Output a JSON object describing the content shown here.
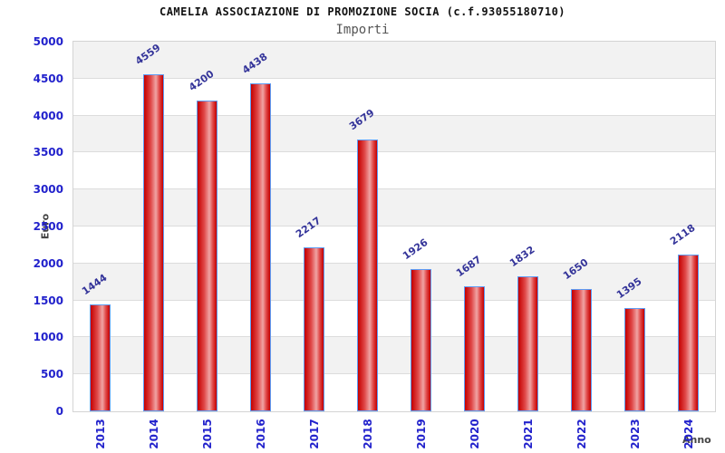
{
  "chart_data": {
    "type": "bar",
    "title": "CAMELIA ASSOCIAZIONE DI PROMOZIONE SOCIA (c.f.93055180710)",
    "subtitle": "Importi",
    "xlabel": "Anno",
    "ylabel": "Euro",
    "categories": [
      "2013",
      "2014",
      "2015",
      "2016",
      "2017",
      "2018",
      "2019",
      "2020",
      "2021",
      "2022",
      "2023",
      "2024"
    ],
    "values": [
      1444,
      4559,
      4200,
      4438,
      2217,
      3679,
      1926,
      1687,
      1832,
      1650,
      1395,
      2118
    ],
    "ylim": [
      0,
      5000
    ],
    "ytick_step": 500,
    "grid": "horizontal-bands",
    "legend_position": "none",
    "colors": {
      "bar_dark": "#c40000",
      "bar_mid": "#e04848",
      "bar_light": "#f0a4a4",
      "bar_border": "#5e9cf5",
      "tick_label": "#2222cc",
      "value_label": "#333399",
      "band_alt": "#f2f2f2",
      "gridline": "#dcdcdc",
      "axis_title": "#444444"
    }
  }
}
